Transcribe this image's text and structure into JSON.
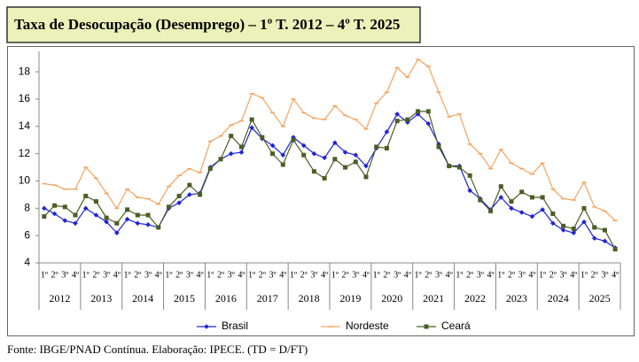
{
  "chart_data": {
    "type": "line",
    "title": "Taxa de Desocupação (Desemprego) – 1º T. 2012 – 4º T. 2025",
    "source": "Fonte: IBGE/PNAD Contínua. Elaboração: IPECE. (TD = D/FT)",
    "categories": [
      "1º",
      "2º",
      "3º",
      "4º",
      "1º",
      "2º",
      "3º",
      "4º",
      "1º",
      "2º",
      "3º",
      "4º",
      "1º",
      "2º",
      "3º",
      "4º",
      "1º",
      "2º",
      "3º",
      "4º",
      "1º",
      "2º",
      "3º",
      "4º",
      "1º",
      "2º",
      "3º",
      "4º",
      "1º",
      "2º",
      "3º",
      "4º",
      "1º",
      "2º",
      "3º",
      "4º",
      "1º",
      "2º",
      "3º",
      "4º",
      "1º",
      "2º",
      "3º",
      "4º",
      "1º",
      "2º",
      "3º",
      "4º",
      "1º",
      "2º",
      "3º",
      "4º",
      "1º",
      "2º",
      "3º",
      "4º"
    ],
    "category_groups": [
      "2012",
      "2013",
      "2014",
      "2015",
      "2016",
      "2017",
      "2018",
      "2019",
      "2020",
      "2021",
      "2022",
      "2023",
      "2024",
      "2025"
    ],
    "ylim": [
      4,
      19.5
    ],
    "yticks": [
      4,
      6,
      8,
      10,
      12,
      14,
      16,
      18
    ],
    "grid": false,
    "series": [
      {
        "name": "Brasil",
        "color": "#1f24d8",
        "marker": "diamond",
        "values": [
          8.0,
          7.6,
          7.1,
          6.9,
          8.0,
          7.5,
          7.0,
          6.2,
          7.2,
          6.9,
          6.8,
          6.6,
          8.0,
          8.4,
          9.0,
          9.1,
          11.0,
          11.6,
          12.0,
          12.1,
          13.9,
          13.1,
          12.6,
          11.9,
          13.2,
          12.6,
          12.0,
          11.7,
          12.8,
          12.1,
          11.9,
          11.1,
          12.4,
          13.6,
          14.9,
          14.3,
          14.9,
          14.2,
          12.7,
          11.1,
          11.1,
          9.3,
          8.7,
          7.9,
          8.8,
          8.0,
          7.7,
          7.4,
          7.9,
          6.9,
          6.4,
          6.2,
          7.0,
          5.8,
          5.6,
          5.1
        ]
      },
      {
        "name": "Nordeste",
        "color": "#f5a460",
        "marker": "dash",
        "values": [
          9.8,
          9.7,
          9.4,
          9.4,
          11.0,
          10.2,
          9.1,
          8.0,
          9.4,
          8.8,
          8.7,
          8.3,
          9.6,
          10.4,
          10.9,
          10.6,
          12.9,
          13.3,
          14.1,
          14.4,
          16.4,
          16.1,
          15.0,
          14.0,
          16.0,
          15.0,
          14.6,
          14.5,
          15.5,
          14.8,
          14.5,
          13.8,
          15.7,
          16.5,
          18.3,
          17.6,
          18.9,
          18.4,
          16.5,
          14.7,
          14.9,
          12.7,
          12.0,
          10.9,
          12.3,
          11.3,
          10.9,
          10.5,
          11.3,
          9.4,
          8.7,
          8.6,
          9.9,
          8.1,
          7.8,
          7.1
        ]
      },
      {
        "name": "Ceará",
        "color": "#4b5e24",
        "marker": "square",
        "values": [
          7.4,
          8.2,
          8.1,
          7.5,
          8.9,
          8.5,
          7.3,
          6.9,
          7.9,
          7.5,
          7.5,
          6.6,
          8.1,
          8.9,
          9.7,
          9.0,
          10.9,
          11.6,
          13.3,
          12.5,
          14.5,
          13.2,
          12.0,
          11.2,
          13.0,
          11.9,
          10.7,
          10.2,
          11.6,
          11.0,
          11.4,
          10.3,
          12.5,
          12.4,
          14.4,
          14.5,
          15.1,
          15.1,
          12.5,
          11.1,
          11.0,
          10.4,
          8.6,
          7.8,
          9.6,
          8.5,
          9.2,
          8.8,
          8.8,
          7.6,
          6.7,
          6.5,
          8.0,
          6.6,
          6.4,
          5.0
        ]
      }
    ]
  }
}
